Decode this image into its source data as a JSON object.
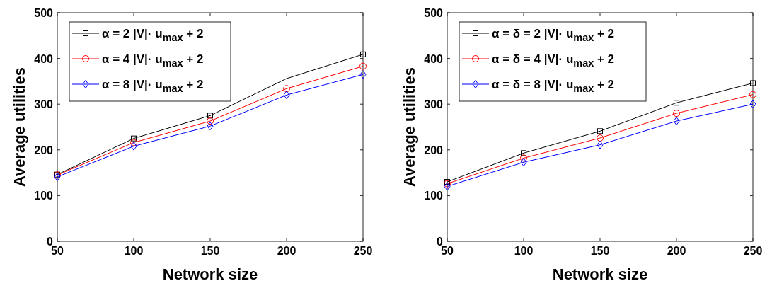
{
  "chart_data": [
    {
      "type": "line",
      "xlabel": "Network size",
      "ylabel": "Average utilities",
      "x": [
        50,
        100,
        150,
        200,
        250
      ],
      "xlim": [
        50,
        250
      ],
      "xticks": [
        50,
        100,
        150,
        200,
        250
      ],
      "ylim": [
        0,
        500
      ],
      "yticks": [
        0,
        100,
        200,
        300,
        400,
        500
      ],
      "grid": false,
      "legend": "top left",
      "series": [
        {
          "name": "α = 2 |V|· u$_{max}$ + 2",
          "color": "#000000",
          "marker": "square",
          "values": [
            146,
            225,
            275,
            356,
            409
          ]
        },
        {
          "name": "α = 4 |V|· u$_{max}$ + 2",
          "color": "#ff0000",
          "marker": "circle",
          "values": [
            145,
            216,
            263,
            334,
            383
          ]
        },
        {
          "name": "α = 8 |V|· u$_{max}$ + 2",
          "color": "#0000ff",
          "marker": "diamond",
          "values": [
            141,
            208,
            252,
            320,
            365
          ]
        }
      ]
    },
    {
      "type": "line",
      "xlabel": "Network size",
      "ylabel": "Average utilities",
      "x": [
        50,
        100,
        150,
        200,
        250
      ],
      "xlim": [
        50,
        250
      ],
      "xticks": [
        50,
        100,
        150,
        200,
        250
      ],
      "ylim": [
        0,
        500
      ],
      "yticks": [
        0,
        100,
        200,
        300,
        400,
        500
      ],
      "grid": false,
      "legend": "top left",
      "series": [
        {
          "name": "α = δ = 2 |V|· u$_{max}$ + 2",
          "color": "#000000",
          "marker": "square",
          "values": [
            130,
            193,
            241,
            303,
            346
          ]
        },
        {
          "name": "α = δ = 4 |V|· u$_{max}$ + 2",
          "color": "#ff0000",
          "marker": "circle",
          "values": [
            126,
            182,
            226,
            280,
            321
          ]
        },
        {
          "name": "α = δ = 8 |V|· u$_{max}$ + 2",
          "color": "#0000ff",
          "marker": "diamond",
          "values": [
            120,
            173,
            211,
            263,
            300
          ]
        }
      ]
    }
  ]
}
